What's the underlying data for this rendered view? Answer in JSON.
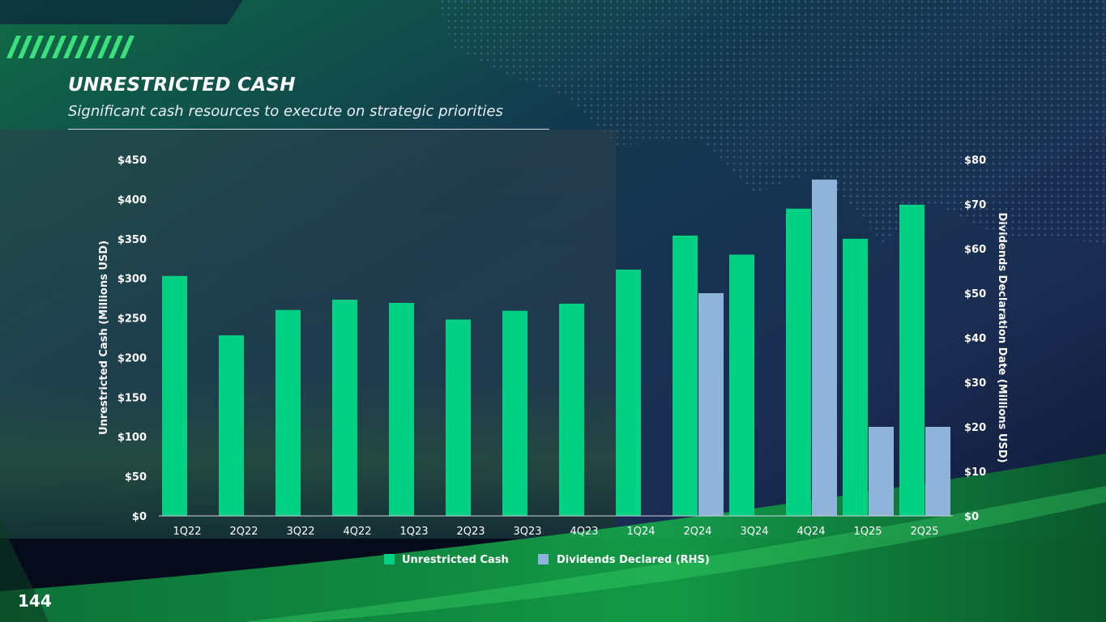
{
  "slide": {
    "title": "UNRESTRICTED CASH",
    "subtitle": "Significant cash resources to execute on strategic priorities",
    "page_number": "144"
  },
  "colors": {
    "cash": "#00d084",
    "dividends": "#8fb4d9",
    "background": "#0b1530",
    "accent_green": "#12a94f"
  },
  "chart_data": {
    "type": "bar",
    "categories": [
      "1Q22",
      "2Q22",
      "3Q22",
      "4Q22",
      "1Q23",
      "2Q23",
      "3Q23",
      "4Q23",
      "1Q24",
      "2Q24",
      "3Q24",
      "4Q24",
      "1Q25",
      "2Q25"
    ],
    "series": [
      {
        "name": "Unrestricted Cash",
        "axis": "left",
        "color": "#00d084",
        "values": [
          303,
          228,
          260,
          273,
          269,
          248,
          259,
          268,
          311,
          354,
          330,
          388,
          350,
          393
        ]
      },
      {
        "name": "Dividends Declared (RHS)",
        "axis": "right",
        "color": "#8fb4d9",
        "values": [
          null,
          null,
          null,
          null,
          null,
          null,
          null,
          null,
          null,
          50,
          null,
          75.5,
          20,
          20
        ]
      }
    ],
    "ylabel": "Unrestricted Cash (Millions USD)",
    "y2label": "Dividends Declaration Date (Millions USD)",
    "ylim": [
      0,
      450
    ],
    "y2lim": [
      0,
      80
    ],
    "yticks": [
      "$0",
      "$50",
      "$100",
      "$150",
      "$200",
      "$250",
      "$300",
      "$350",
      "$400",
      "$450"
    ],
    "y2ticks": [
      "$0",
      "$10",
      "$20",
      "$30",
      "$40",
      "$50",
      "$60",
      "$70",
      "$80"
    ],
    "grid": false,
    "legend_position": "bottom"
  }
}
